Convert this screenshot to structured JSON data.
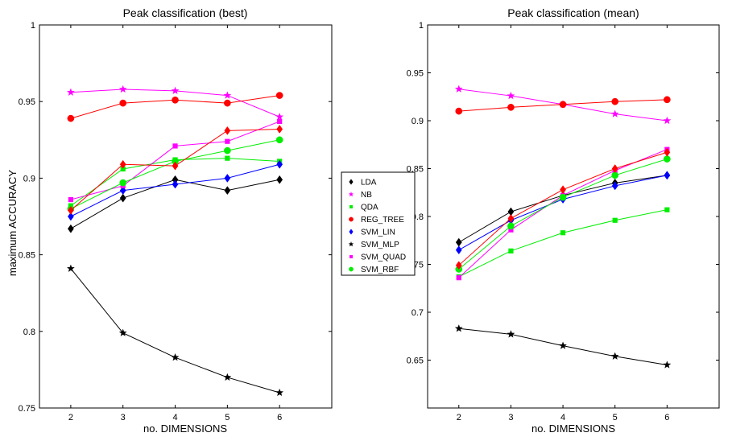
{
  "chart_data": [
    {
      "type": "line",
      "title": "Peak classification (best)",
      "xlabel": "no. DIMENSIONS",
      "ylabel": "maximum ACCURACY",
      "x": [
        2,
        3,
        4,
        5,
        6
      ],
      "xlim": [
        1.4,
        7
      ],
      "ylim": [
        0.75,
        1
      ],
      "xticks": [
        2,
        3,
        4,
        5,
        6
      ],
      "yticks": [
        0.75,
        0.8,
        0.85,
        0.9,
        0.95,
        1
      ],
      "ytick_labels": [
        "0.75",
        "0.8",
        "0.85",
        "0.9",
        "0.95",
        "1"
      ],
      "grid": false,
      "series": [
        {
          "name": "LDA",
          "values": [
            0.867,
            0.887,
            0.899,
            0.892,
            0.899
          ]
        },
        {
          "name": "NB",
          "values": [
            0.956,
            0.958,
            0.957,
            0.954,
            0.94
          ]
        },
        {
          "name": "QDA",
          "values": [
            0.882,
            0.906,
            0.912,
            0.913,
            0.911
          ]
        },
        {
          "name": "REG_TREE",
          "values": [
            0.939,
            0.949,
            0.951,
            0.949,
            0.954
          ]
        },
        {
          "name": "SVM_LIN",
          "values": [
            0.875,
            0.892,
            0.896,
            0.9,
            0.909
          ]
        },
        {
          "name": "SVM_MLP",
          "values": [
            0.841,
            0.799,
            0.783,
            0.77,
            0.76
          ]
        },
        {
          "name": "SVM_QUAD",
          "values": [
            0.886,
            0.895,
            0.921,
            0.924,
            0.937
          ]
        },
        {
          "name": "SVM_RBF",
          "values": [
            0.88,
            0.897,
            0.911,
            0.918,
            0.925
          ]
        },
        {
          "name": "REG_TREE",
          "values": [
            0.879,
            0.909,
            0.908,
            0.931,
            0.932
          ]
        }
      ]
    },
    {
      "type": "line",
      "title": "Peak classification (mean)",
      "xlabel": "no. DIMENSIONS",
      "ylabel": "",
      "x": [
        2,
        3,
        4,
        5,
        6
      ],
      "xlim": [
        1.4,
        7
      ],
      "ylim": [
        0.6,
        1
      ],
      "xticks": [
        2,
        3,
        4,
        5,
        6
      ],
      "yticks": [
        0.65,
        0.7,
        0.75,
        0.8,
        0.85,
        0.9,
        0.95,
        1
      ],
      "ytick_labels": [
        "0.65",
        "0.7",
        "0.75",
        "0.8",
        "0.85",
        "0.9",
        "0.95",
        "1"
      ],
      "grid": false,
      "series": [
        {
          "name": "LDA",
          "values": [
            0.773,
            0.805,
            0.822,
            0.835,
            0.843
          ]
        },
        {
          "name": "NB",
          "values": [
            0.933,
            0.926,
            0.917,
            0.907,
            0.9
          ]
        },
        {
          "name": "QDA",
          "values": [
            0.737,
            0.764,
            0.783,
            0.796,
            0.807
          ]
        },
        {
          "name": "REG_TREE",
          "values": [
            0.91,
            0.914,
            0.917,
            0.92,
            0.922
          ]
        },
        {
          "name": "SVM_LIN",
          "values": [
            0.765,
            0.796,
            0.818,
            0.832,
            0.843
          ]
        },
        {
          "name": "SVM_MLP",
          "values": [
            0.683,
            0.677,
            0.665,
            0.654,
            0.645
          ]
        },
        {
          "name": "SVM_QUAD",
          "values": [
            0.736,
            0.786,
            0.822,
            0.848,
            0.87
          ]
        },
        {
          "name": "SVM_RBF",
          "values": [
            0.745,
            0.79,
            0.82,
            0.843,
            0.86
          ]
        },
        {
          "name": "REG_TREE",
          "values": [
            0.749,
            0.798,
            0.828,
            0.85,
            0.867
          ]
        }
      ]
    }
  ],
  "legend": {
    "placement": "between-panels",
    "entries": [
      {
        "label": "LDA",
        "color": "#000000",
        "marker": "diamond"
      },
      {
        "label": "NB",
        "color": "#ff00ff",
        "marker": "star"
      },
      {
        "label": "QDA",
        "color": "#00ee00",
        "marker": "square"
      },
      {
        "label": "REG_TREE",
        "color": "#ff0000",
        "marker": "circle"
      },
      {
        "label": "SVM_LIN",
        "color": "#0000ff",
        "marker": "diamond"
      },
      {
        "label": "SVM_MLP",
        "color": "#000000",
        "marker": "star"
      },
      {
        "label": "SVM_QUAD",
        "color": "#ff00ff",
        "marker": "square"
      },
      {
        "label": "SVM_RBF",
        "color": "#00ee00",
        "marker": "circle"
      }
    ]
  },
  "series_style": [
    {
      "color": "#000000",
      "marker": "diamond"
    },
    {
      "color": "#ff00ff",
      "marker": "star"
    },
    {
      "color": "#00ee00",
      "marker": "square"
    },
    {
      "color": "#ff0000",
      "marker": "circle"
    },
    {
      "color": "#0000ff",
      "marker": "diamond"
    },
    {
      "color": "#000000",
      "marker": "star"
    },
    {
      "color": "#ff00ff",
      "marker": "square"
    },
    {
      "color": "#00ee00",
      "marker": "circle"
    },
    {
      "color": "#ff0000",
      "marker": "diamond"
    }
  ]
}
